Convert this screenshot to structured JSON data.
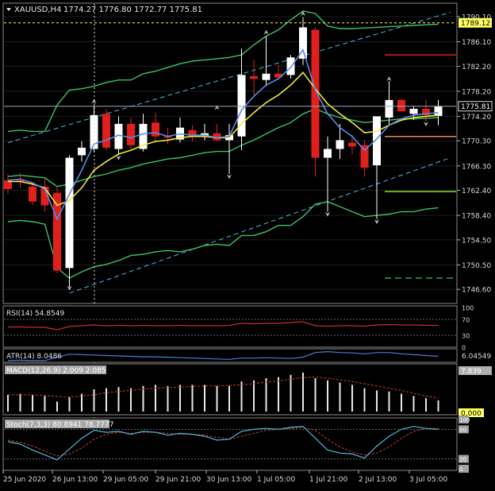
{
  "header": {
    "symbol": "XAUUSD,H4",
    "ohlc": "1774.27 1776.80 1772.77 1775.81"
  },
  "colors": {
    "bg": "#000000",
    "grid": "#3a3a3a",
    "bull": "#ffffff",
    "bear": "#e0201c",
    "bb": "#3cc266",
    "ma_fast": "#5a8ae6",
    "ma_slow": "#f2e83a",
    "channel": "#4cb8e6",
    "rsi": "#c0302c",
    "atr": "#4a7ad8",
    "macd_bar": "#e8e8e8",
    "macd_signal": "#d03a30",
    "stoch_main": "#4cb8d8",
    "stoch_signal": "#d03a30",
    "ask_line": "#ffff66",
    "bid_line": "#9aa9c0",
    "level_red": "#e0201c",
    "level_orange": "#f08a4a",
    "level_lime": "#8ae020",
    "level_green": "#3cc266"
  },
  "price_axis": {
    "labels": [
      "1790.10",
      "1786.10",
      "1782.20",
      "1778.20",
      "1774.20",
      "1770.30",
      "1766.30",
      "1762.40",
      "1758.40",
      "1754.50",
      "1750.50",
      "1746.60"
    ],
    "ask_label": "1789.12",
    "bid_label": "1775.81"
  },
  "time_axis": {
    "labels": [
      "25 Jun 2020",
      "26 Jun 13:00",
      "29 Jun 05:00",
      "29 Jun 21:00",
      "30 Jun 13:00",
      "1 Jul 05:00",
      "1 Jul 21:00",
      "2 Jul 13:00",
      "3 Jul 05:00"
    ]
  },
  "candles": [
    {
      "o": 1764.0,
      "h": 1765.0,
      "l": 1761.8,
      "c": 1762.6
    },
    {
      "o": 1764.0,
      "h": 1765.2,
      "l": 1762.8,
      "c": 1763.8
    },
    {
      "o": 1763.0,
      "h": 1763.6,
      "l": 1760.0,
      "c": 1760.6
    },
    {
      "o": 1763.0,
      "h": 1764.2,
      "l": 1759.0,
      "c": 1760.0
    },
    {
      "o": 1762.0,
      "h": 1763.0,
      "l": 1749.2,
      "c": 1749.6
    },
    {
      "o": 1750.0,
      "h": 1768.0,
      "l": 1747.0,
      "c": 1767.6
    },
    {
      "o": 1768.0,
      "h": 1770.2,
      "l": 1767.0,
      "c": 1769.2
    },
    {
      "o": 1769.0,
      "h": 1776.0,
      "l": 1768.6,
      "c": 1774.4
    },
    {
      "o": 1774.6,
      "h": 1775.4,
      "l": 1768.8,
      "c": 1769.2
    },
    {
      "o": 1769.0,
      "h": 1774.2,
      "l": 1768.0,
      "c": 1773.0
    },
    {
      "o": 1773.0,
      "h": 1774.0,
      "l": 1769.0,
      "c": 1769.6
    },
    {
      "o": 1769.0,
      "h": 1774.6,
      "l": 1768.6,
      "c": 1773.0
    },
    {
      "o": 1773.2,
      "h": 1774.8,
      "l": 1770.0,
      "c": 1771.0
    },
    {
      "o": 1771.0,
      "h": 1772.4,
      "l": 1769.8,
      "c": 1770.8
    },
    {
      "o": 1770.5,
      "h": 1774.0,
      "l": 1770.0,
      "c": 1772.4
    },
    {
      "o": 1772.0,
      "h": 1772.8,
      "l": 1770.2,
      "c": 1771.0
    },
    {
      "o": 1771.0,
      "h": 1773.0,
      "l": 1770.4,
      "c": 1771.5
    },
    {
      "o": 1771.5,
      "h": 1773.0,
      "l": 1770.2,
      "c": 1770.4
    },
    {
      "o": 1770.4,
      "h": 1773.0,
      "l": 1765.0,
      "c": 1771.2
    },
    {
      "o": 1771.0,
      "h": 1785.0,
      "l": 1768.8,
      "c": 1780.8
    },
    {
      "o": 1780.6,
      "h": 1783.2,
      "l": 1777.6,
      "c": 1780.2
    },
    {
      "o": 1780.0,
      "h": 1787.0,
      "l": 1779.0,
      "c": 1781.0
    },
    {
      "o": 1781.0,
      "h": 1782.4,
      "l": 1780.0,
      "c": 1780.4
    },
    {
      "o": 1780.8,
      "h": 1784.0,
      "l": 1780.2,
      "c": 1783.6
    },
    {
      "o": 1783.4,
      "h": 1790.0,
      "l": 1782.4,
      "c": 1788.4
    },
    {
      "o": 1788.0,
      "h": 1788.4,
      "l": 1764.6,
      "c": 1767.6
    },
    {
      "o": 1767.6,
      "h": 1771.0,
      "l": 1759.0,
      "c": 1769.0
    },
    {
      "o": 1769.0,
      "h": 1773.0,
      "l": 1767.4,
      "c": 1770.4
    },
    {
      "o": 1770.0,
      "h": 1771.2,
      "l": 1768.2,
      "c": 1769.4
    },
    {
      "o": 1769.6,
      "h": 1770.4,
      "l": 1764.6,
      "c": 1766.0
    },
    {
      "o": 1766.4,
      "h": 1774.0,
      "l": 1757.8,
      "c": 1774.2
    },
    {
      "o": 1774.0,
      "h": 1779.8,
      "l": 1772.8,
      "c": 1776.8
    },
    {
      "o": 1776.8,
      "h": 1777.0,
      "l": 1775.0,
      "c": 1775.0
    },
    {
      "o": 1774.6,
      "h": 1775.8,
      "l": 1773.6,
      "c": 1775.4
    },
    {
      "o": 1775.4,
      "h": 1776.8,
      "l": 1773.4,
      "c": 1774.4
    },
    {
      "o": 1774.27,
      "h": 1776.8,
      "l": 1772.77,
      "c": 1775.81
    }
  ],
  "fractals_up": [
    {
      "i": 7,
      "p": 1777.0
    },
    {
      "i": 17,
      "p": 1776.0
    },
    {
      "i": 21,
      "p": 1788.0
    },
    {
      "i": 24,
      "p": 1791.0
    },
    {
      "i": 31,
      "p": 1780.6
    }
  ],
  "fractals_down": [
    {
      "i": 5,
      "p": 1746.4
    },
    {
      "i": 9,
      "p": 1767.2
    },
    {
      "i": 18,
      "p": 1764.2
    },
    {
      "i": 26,
      "p": 1758.2
    },
    {
      "i": 30,
      "p": 1757.0
    },
    {
      "i": 34,
      "p": 1772.6
    }
  ],
  "bands": {
    "upper": [
      1771.8,
      1772.0,
      1771.8,
      1771.8,
      1776.0,
      1778.4,
      1778.6,
      1779.0,
      1779.6,
      1780.0,
      1780.0,
      1781.0,
      1781.4,
      1782.0,
      1782.6,
      1783.0,
      1783.2,
      1783.4,
      1783.6,
      1784.0,
      1785.6,
      1787.0,
      1788.0,
      1789.6,
      1791.0,
      1790.6,
      1788.6,
      1788.2,
      1788.2,
      1788.3,
      1788.4,
      1788.5,
      1788.6,
      1788.7,
      1788.8,
      1788.9
    ],
    "middle": [
      1764.6,
      1764.8,
      1764.6,
      1764.4,
      1763.0,
      1763.4,
      1764.0,
      1764.6,
      1765.0,
      1765.6,
      1766.0,
      1766.6,
      1767.0,
      1767.4,
      1767.6,
      1768.0,
      1768.4,
      1768.6,
      1768.6,
      1769.6,
      1770.4,
      1771.4,
      1772.4,
      1773.2,
      1774.6,
      1775.4,
      1774.6,
      1774.0,
      1773.6,
      1773.2,
      1773.4,
      1773.6,
      1773.8,
      1773.8,
      1773.9,
      1774.0
    ],
    "lower": [
      1757.4,
      1757.6,
      1757.4,
      1757.0,
      1750.0,
      1748.4,
      1749.4,
      1750.2,
      1750.6,
      1751.2,
      1752.0,
      1752.2,
      1752.6,
      1752.8,
      1752.6,
      1753.0,
      1753.6,
      1753.8,
      1753.6,
      1755.2,
      1755.2,
      1755.8,
      1756.8,
      1756.8,
      1758.2,
      1760.2,
      1760.6,
      1759.8,
      1759.0,
      1758.2,
      1758.4,
      1758.6,
      1759.0,
      1759.0,
      1759.4,
      1759.6
    ]
  },
  "ma_fast": [
    1764.0,
    1764.2,
    1763.6,
    1762.6,
    1757.8,
    1761.8,
    1765.6,
    1769.8,
    1770.4,
    1771.2,
    1770.8,
    1771.4,
    1771.6,
    1771.0,
    1771.4,
    1771.2,
    1771.2,
    1770.8,
    1771.0,
    1775.2,
    1777.4,
    1779.2,
    1780.2,
    1782.0,
    1784.8,
    1778.4,
    1774.6,
    1772.4,
    1771.0,
    1768.8,
    1770.6,
    1772.8,
    1773.8,
    1774.4,
    1774.6,
    1774.8
  ],
  "ma_slow": [
    1763.8,
    1763.8,
    1763.4,
    1762.8,
    1760.0,
    1760.8,
    1762.8,
    1765.6,
    1767.0,
    1768.2,
    1768.8,
    1769.6,
    1770.2,
    1770.4,
    1770.8,
    1771.0,
    1771.0,
    1770.8,
    1770.8,
    1773.0,
    1774.8,
    1776.4,
    1777.6,
    1779.2,
    1781.2,
    1778.6,
    1776.2,
    1774.6,
    1773.2,
    1771.6,
    1771.8,
    1772.8,
    1773.6,
    1774.0,
    1774.2,
    1774.4
  ],
  "levels": {
    "red": 1784.0,
    "orange": 1771.0,
    "lime": 1762.2,
    "green_dashed": 1748.4
  },
  "rsi": {
    "label": "RSI(14) 54.8549",
    "scale": [
      "100",
      "70",
      "30",
      "0"
    ],
    "values": [
      51,
      51,
      50,
      50,
      44,
      52,
      54,
      56,
      54,
      55,
      54,
      55,
      54,
      54,
      55,
      54,
      54,
      54,
      55,
      60,
      59,
      60,
      60,
      62,
      64,
      54,
      53,
      54,
      54,
      53,
      56,
      57,
      56,
      56,
      55,
      55
    ]
  },
  "atr": {
    "label": "ATR(14) 8.0486",
    "value_label": "6.04549",
    "values": [
      7.0,
      7.1,
      7.0,
      7.0,
      7.8,
      8.5,
      8.4,
      8.3,
      8.2,
      8.1,
      8.0,
      7.9,
      7.9,
      7.8,
      7.7,
      7.6,
      7.5,
      7.4,
      7.3,
      7.6,
      7.6,
      7.7,
      7.6,
      7.5,
      7.8,
      8.9,
      9.1,
      8.9,
      8.8,
      8.6,
      8.9,
      8.9,
      8.6,
      8.4,
      8.2,
      8.0
    ]
  },
  "macd": {
    "label": "MACD(12,26,9) 2.009 2.085",
    "top_label": "7.839",
    "zero_label": "0.000",
    "bars": [
      3.0,
      3.2,
      3.0,
      2.8,
      1.8,
      2.6,
      3.2,
      4.0,
      4.2,
      4.4,
      4.2,
      4.6,
      4.8,
      4.6,
      4.8,
      4.8,
      4.8,
      4.6,
      4.6,
      5.4,
      5.6,
      6.0,
      6.2,
      6.6,
      7.0,
      6.0,
      5.6,
      5.2,
      4.8,
      4.2,
      3.8,
      3.6,
      3.2,
      2.8,
      2.4,
      2.0
    ],
    "signal": [
      3.0,
      3.0,
      3.0,
      2.9,
      2.7,
      2.6,
      2.8,
      3.0,
      3.4,
      3.6,
      3.8,
      4.0,
      4.2,
      4.3,
      4.4,
      4.5,
      4.6,
      4.6,
      4.7,
      4.8,
      5.0,
      5.3,
      5.5,
      5.8,
      6.1,
      6.2,
      6.0,
      5.7,
      5.4,
      5.0,
      4.6,
      4.2,
      3.8,
      3.3,
      2.8,
      2.4
    ]
  },
  "stoch": {
    "label": "Stoch(7,3,3) 80.8941 78.7777",
    "scale": [
      "100",
      "80",
      "20",
      "0"
    ],
    "main": [
      55,
      50,
      38,
      28,
      18,
      40,
      62,
      78,
      74,
      76,
      70,
      76,
      74,
      68,
      72,
      70,
      66,
      58,
      60,
      76,
      80,
      82,
      80,
      84,
      86,
      62,
      38,
      32,
      30,
      22,
      46,
      66,
      80,
      86,
      82,
      80
    ],
    "signal": [
      58,
      54,
      46,
      36,
      26,
      30,
      42,
      60,
      70,
      74,
      72,
      74,
      74,
      72,
      70,
      70,
      68,
      64,
      60,
      66,
      72,
      78,
      80,
      82,
      84,
      78,
      60,
      44,
      34,
      28,
      32,
      44,
      62,
      76,
      82,
      82
    ]
  }
}
